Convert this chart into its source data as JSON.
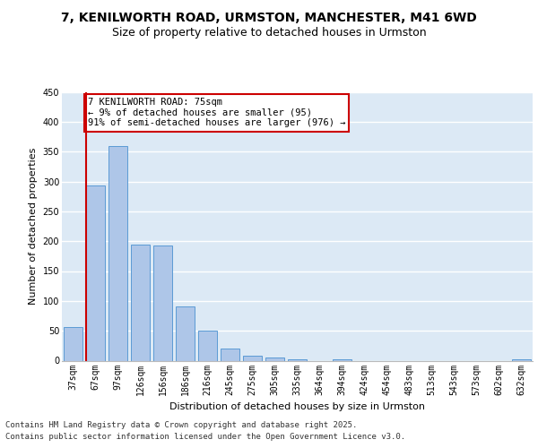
{
  "title_line1": "7, KENILWORTH ROAD, URMSTON, MANCHESTER, M41 6WD",
  "title_line2": "Size of property relative to detached houses in Urmston",
  "xlabel": "Distribution of detached houses by size in Urmston",
  "ylabel": "Number of detached properties",
  "categories": [
    "37sqm",
    "67sqm",
    "97sqm",
    "126sqm",
    "156sqm",
    "186sqm",
    "216sqm",
    "245sqm",
    "275sqm",
    "305sqm",
    "335sqm",
    "364sqm",
    "394sqm",
    "424sqm",
    "454sqm",
    "483sqm",
    "513sqm",
    "543sqm",
    "573sqm",
    "602sqm",
    "632sqm"
  ],
  "values": [
    57,
    293,
    360,
    194,
    193,
    91,
    50,
    21,
    9,
    5,
    3,
    0,
    3,
    0,
    0,
    0,
    0,
    0,
    0,
    0,
    3
  ],
  "bar_color": "#aec6e8",
  "bar_edge_color": "#5b9bd5",
  "marker_bar_index": 1,
  "marker_color": "#cc0000",
  "annotation_text": "7 KENILWORTH ROAD: 75sqm\n← 9% of detached houses are smaller (95)\n91% of semi-detached houses are larger (976) →",
  "annotation_box_color": "#ffffff",
  "annotation_box_edge_color": "#cc0000",
  "ylim": [
    0,
    450
  ],
  "yticks": [
    0,
    50,
    100,
    150,
    200,
    250,
    300,
    350,
    400,
    450
  ],
  "background_color": "#dce9f5",
  "grid_color": "#ffffff",
  "footer_line1": "Contains HM Land Registry data © Crown copyright and database right 2025.",
  "footer_line2": "Contains public sector information licensed under the Open Government Licence v3.0.",
  "title_fontsize": 10,
  "subtitle_fontsize": 9,
  "axis_label_fontsize": 8,
  "tick_fontsize": 7,
  "annotation_fontsize": 7.5,
  "footer_fontsize": 6.5
}
